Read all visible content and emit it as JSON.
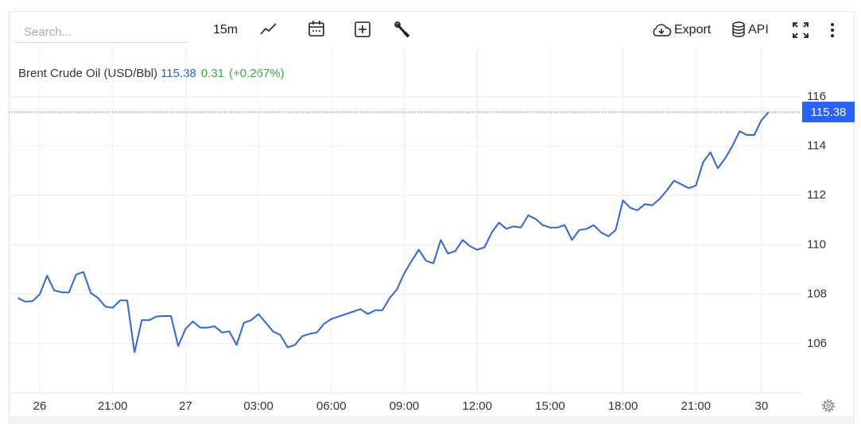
{
  "toolbar": {
    "search_placeholder": "Search...",
    "interval": "15m",
    "export": "Export",
    "api": "API"
  },
  "chart_data": {
    "type": "line",
    "title": "Brent Crude Oil (USD/Bbl)",
    "last_price": 115.38,
    "change": 0.31,
    "change_percent": {
      "value": 0.267,
      "label": "(+0.267%)"
    },
    "color": "#2f66d8",
    "grid": true,
    "ylim": [
      104,
      118
    ],
    "yticks": [
      106,
      108,
      110,
      112,
      114,
      116
    ],
    "categories": [
      null,
      null,
      null,
      "26",
      null,
      null,
      null,
      null,
      null,
      null,
      null,
      null,
      null,
      "21:00",
      null,
      null,
      null,
      null,
      null,
      null,
      null,
      null,
      null,
      "27",
      null,
      null,
      null,
      null,
      null,
      null,
      null,
      null,
      null,
      "03:00",
      null,
      null,
      null,
      null,
      null,
      null,
      null,
      null,
      null,
      "06:00",
      null,
      null,
      null,
      null,
      null,
      null,
      null,
      null,
      null,
      "09:00",
      null,
      null,
      null,
      null,
      null,
      null,
      null,
      null,
      null,
      "12:00",
      null,
      null,
      null,
      null,
      null,
      null,
      null,
      null,
      null,
      "15:00",
      null,
      null,
      null,
      null,
      null,
      null,
      null,
      null,
      null,
      "18:00",
      null,
      null,
      null,
      null,
      null,
      null,
      null,
      null,
      null,
      "21:00",
      null,
      null,
      null,
      null,
      null,
      null,
      null,
      null,
      "30",
      null
    ],
    "values": [
      107.85,
      107.7,
      107.72,
      108.0,
      108.75,
      108.15,
      108.08,
      108.07,
      108.8,
      108.9,
      108.05,
      107.85,
      107.5,
      107.45,
      107.75,
      107.75,
      105.65,
      106.95,
      106.95,
      107.1,
      107.12,
      107.12,
      105.9,
      106.6,
      106.9,
      106.65,
      106.65,
      106.7,
      106.45,
      106.5,
      105.95,
      106.85,
      106.95,
      107.2,
      106.85,
      106.5,
      106.35,
      105.85,
      105.95,
      106.3,
      106.4,
      106.45,
      106.8,
      107.0,
      107.1,
      107.2,
      107.3,
      107.4,
      107.2,
      107.35,
      107.35,
      107.85,
      108.2,
      108.85,
      109.35,
      109.8,
      109.35,
      109.25,
      110.2,
      109.65,
      109.75,
      110.2,
      109.95,
      109.8,
      109.9,
      110.5,
      110.9,
      110.65,
      110.75,
      110.7,
      111.2,
      111.05,
      110.8,
      110.7,
      110.7,
      110.8,
      110.2,
      110.6,
      110.65,
      110.8,
      110.5,
      110.35,
      110.6,
      111.8,
      111.5,
      111.4,
      111.65,
      111.6,
      111.85,
      112.2,
      112.6,
      112.45,
      112.3,
      112.4,
      113.35,
      113.75,
      113.1,
      113.5,
      114.0,
      114.6,
      114.45,
      114.45,
      115.05,
      115.38
    ]
  }
}
